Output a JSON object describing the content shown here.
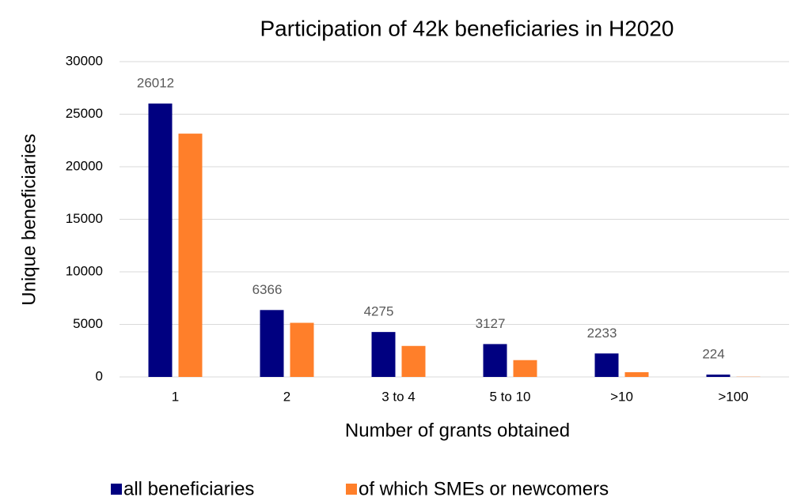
{
  "chart_data": {
    "type": "bar",
    "title": "Participation of 42k beneficiaries in H2020",
    "x_label": "Number of grants obtained",
    "y_label": "Unique beneficiaries",
    "categories": [
      "1",
      "2",
      "3 to 4",
      "5 to 10",
      ">10",
      ">100"
    ],
    "series": [
      {
        "name": "all beneficiaries",
        "color": "#000080",
        "values": [
          26012,
          6366,
          4275,
          3127,
          2233,
          224
        ]
      },
      {
        "name": "of which SMEs or newcomers",
        "color": "#ff7f2a",
        "values": [
          23150,
          5150,
          2950,
          1600,
          450,
          20
        ]
      }
    ],
    "ylim": [
      0,
      30000
    ],
    "yticks": [
      0,
      5000,
      10000,
      15000,
      20000,
      25000,
      30000
    ],
    "grid": true,
    "legend": "bottom"
  }
}
